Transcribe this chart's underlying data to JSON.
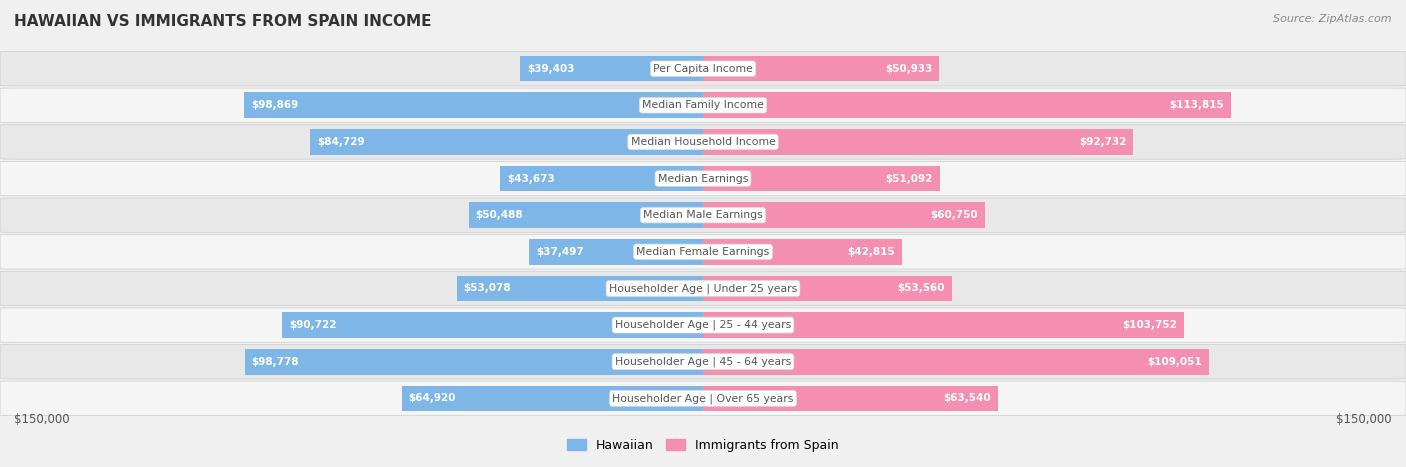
{
  "title": "HAWAIIAN VS IMMIGRANTS FROM SPAIN INCOME",
  "source": "Source: ZipAtlas.com",
  "categories": [
    "Per Capita Income",
    "Median Family Income",
    "Median Household Income",
    "Median Earnings",
    "Median Male Earnings",
    "Median Female Earnings",
    "Householder Age | Under 25 years",
    "Householder Age | 25 - 44 years",
    "Householder Age | 45 - 64 years",
    "Householder Age | Over 65 years"
  ],
  "hawaiian_values": [
    39403,
    98869,
    84729,
    43673,
    50488,
    37497,
    53078,
    90722,
    98778,
    64920
  ],
  "spain_values": [
    50933,
    113815,
    92732,
    51092,
    60750,
    42815,
    53560,
    103752,
    109051,
    63540
  ],
  "hawaiian_labels": [
    "$39,403",
    "$98,869",
    "$84,729",
    "$43,673",
    "$50,488",
    "$37,497",
    "$53,078",
    "$90,722",
    "$98,778",
    "$64,920"
  ],
  "spain_labels": [
    "$50,933",
    "$113,815",
    "$92,732",
    "$51,092",
    "$60,750",
    "$42,815",
    "$53,560",
    "$103,752",
    "$109,051",
    "$63,540"
  ],
  "hawaiian_color": "#7EB6E8",
  "spain_color": "#F48FB1",
  "max_value": 150000,
  "legend_hawaiian": "Hawaiian",
  "legend_spain": "Immigrants from Spain",
  "bg_color": "#f0f0f0",
  "row_color_odd": "#e8e8e8",
  "row_color_even": "#f5f5f5",
  "label_color_inside": "#ffffff",
  "label_color_outside": "#555555",
  "center_label_color": "#555555",
  "axis_label": "$150,000",
  "inside_threshold": 25000
}
